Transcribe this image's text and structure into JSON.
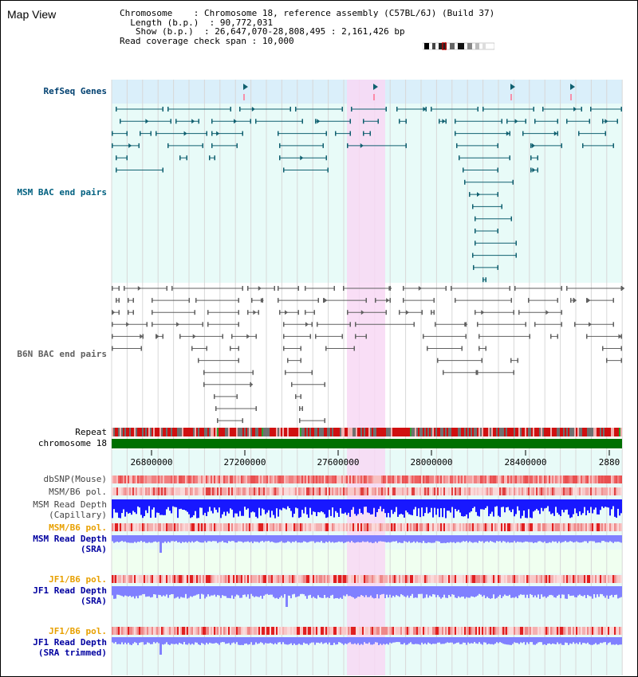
{
  "page": {
    "title": "Map View"
  },
  "info": {
    "chromosome_label": "Chromosome",
    "chromosome_value": "Chromosome 18, reference assembly (C57BL/6J) (Build 37)",
    "length_label": "Length (b.p.)",
    "length_value": "90,772,031",
    "show_label": "Show (b.p.)",
    "show_value": "26,647,070-28,808,495 : 2,161,426 bp",
    "coverage_label": "Read coverage check span",
    "coverage_value": "10,000"
  },
  "tracks": {
    "refseq": "RefSeq Genes",
    "msm_bac": "MSM BAC end pairs",
    "b6n_bac": "B6N BAC end pairs",
    "repeat": "Repeat",
    "chromosome": "chromosome 18",
    "dbsnp": "dbSNP(Mouse)",
    "msm_b6_pol_1": "MSM/B6 pol.",
    "msm_read_depth_cap_1": "MSM Read Depth",
    "msm_read_depth_cap_2": "(Capillary)",
    "msm_b6_pol_2": "MSM/B6 pol.",
    "msm_read_depth_sra_1": "MSM Read Depth",
    "msm_read_depth_sra_2": "(SRA)",
    "jf1_b6_pol_1": "JF1/B6 pol.",
    "jf1_read_depth_sra_1": "JF1 Read Depth",
    "jf1_read_depth_sra_2": "(SRA)",
    "jf1_b6_pol_2": "JF1/B6 pol.",
    "jf1_read_depth_trim_1": "JF1 Read Depth",
    "jf1_read_depth_trim_2": "(SRA trimmed)"
  },
  "axis": {
    "ticks": [
      "26800000",
      "27200000",
      "27600000",
      "28000000",
      "28400000",
      "2880"
    ]
  },
  "colors": {
    "refseq_bg": "#daeffa",
    "bac_bg": "#e8fbf8",
    "msm_feature": "#106070",
    "b6n_feature": "#606060",
    "highlight": "#f8d8f4",
    "chromosome_bar": "#007000",
    "msm_label": "#004070",
    "pol_label_orange": "#e8a000",
    "depth_label_blue": "#0000a0",
    "read_depth": "#1818ff",
    "read_depth_light": "#8080ff"
  }
}
